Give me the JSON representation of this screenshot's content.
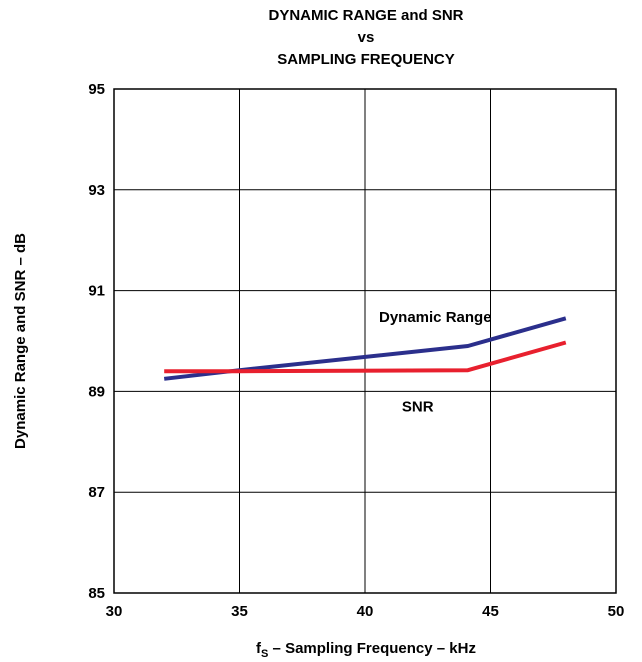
{
  "chart_data": {
    "type": "line",
    "title_lines": [
      "DYNAMIC RANGE and SNR",
      "vs",
      "SAMPLING FREQUENCY"
    ],
    "xlabel_prefix": "f",
    "xlabel_sub": "S",
    "xlabel_rest": " – Sampling Frequency – kHz",
    "ylabel": "Dynamic Range and SNR – dB",
    "xlim": [
      30,
      50
    ],
    "ylim": [
      85,
      95
    ],
    "xticks": [
      30,
      35,
      40,
      45,
      50
    ],
    "yticks": [
      85,
      87,
      89,
      91,
      93,
      95
    ],
    "grid": true,
    "series": [
      {
        "name": "Dynamic Range",
        "color": "#2b2f8c",
        "points": [
          [
            32,
            89.25
          ],
          [
            35,
            89.42
          ],
          [
            44.1,
            89.9
          ],
          [
            48,
            90.45
          ]
        ]
      },
      {
        "name": "SNR",
        "color": "#e8202e",
        "points": [
          [
            32,
            89.4
          ],
          [
            35,
            89.4
          ],
          [
            44.1,
            89.42
          ],
          [
            48,
            89.97
          ]
        ]
      }
    ]
  }
}
